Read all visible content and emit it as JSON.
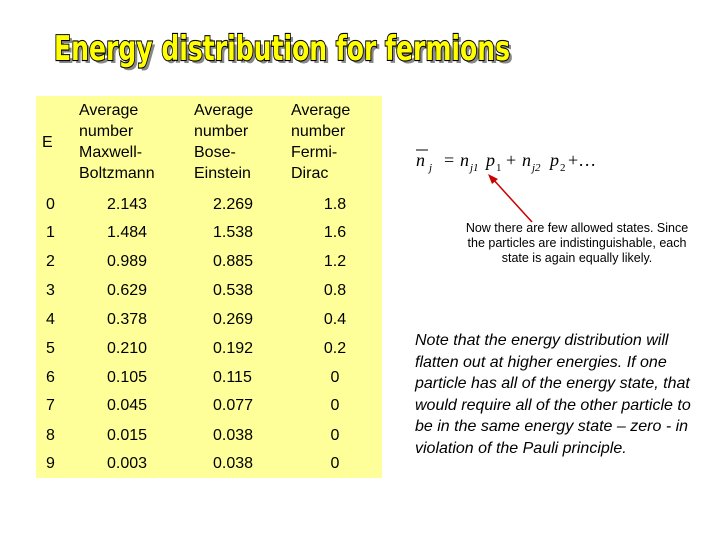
{
  "title": "Energy distribution for fermions",
  "table": {
    "headers": {
      "e": "E",
      "mb": [
        "Average",
        "number",
        "Maxwell-",
        "Boltzmann"
      ],
      "be": [
        "Average",
        "number",
        "Bose-",
        "Einstein"
      ],
      "fd": [
        "Average",
        "number",
        "Fermi-",
        "Dirac"
      ]
    },
    "rows": [
      {
        "e": "0",
        "mb": "2.143",
        "be": "2.269",
        "fd": "1.8"
      },
      {
        "e": "1",
        "mb": "1.484",
        "be": "1.538",
        "fd": "1.6"
      },
      {
        "e": "2",
        "mb": "0.989",
        "be": "0.885",
        "fd": "1.2"
      },
      {
        "e": "3",
        "mb": "0.629",
        "be": "0.538",
        "fd": "0.8"
      },
      {
        "e": "4",
        "mb": "0.378",
        "be": "0.269",
        "fd": "0.4"
      },
      {
        "e": "5",
        "mb": "0.210",
        "be": "0.192",
        "fd": "0.2"
      },
      {
        "e": "6",
        "mb": "0.105",
        "be": "0.115",
        "fd": "0"
      },
      {
        "e": "7",
        "mb": "0.045",
        "be": "0.077",
        "fd": "0"
      },
      {
        "e": "8",
        "mb": "0.015",
        "be": "0.038",
        "fd": "0"
      },
      {
        "e": "9",
        "mb": "0.003",
        "be": "0.038",
        "fd": "0"
      }
    ]
  },
  "formula": {
    "n": "n",
    "j": "j",
    "eq": "=",
    "n1": "n",
    "j1": "j1",
    "p1": "p",
    "p1_sub": "1",
    "plus": "+",
    "n2": "n",
    "j2": "j2",
    "p2": "p",
    "p2_sub": "2",
    "tail": "+…"
  },
  "callout": "Now there are few allowed states.  Since the particles are indistinguishable, each state is again equally likely.",
  "note": "Note that the energy distribution will flatten out at higher energies.  If one particle has all of the energy state, that would require all of the other particle to be in the same energy state – zero - in violation of the Pauli principle.",
  "colors": {
    "panel": "#ffff99",
    "title_fill": "#ffff00",
    "title_stroke": "#000000",
    "arrow": "#cc0000"
  }
}
